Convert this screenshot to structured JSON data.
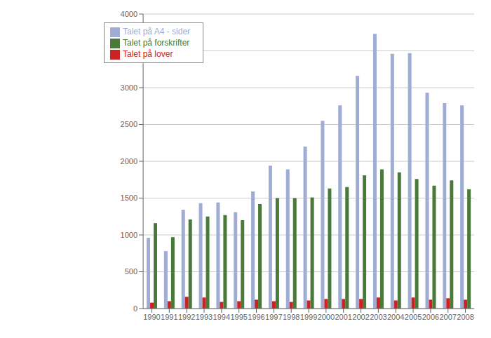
{
  "chart_data": {
    "type": "bar",
    "categories": [
      "1990",
      "1991",
      "1992",
      "1993",
      "1994",
      "1995",
      "1996",
      "1997",
      "1998",
      "1999",
      "2000",
      "2001",
      "2002",
      "2003",
      "2004",
      "2005",
      "2006",
      "2007",
      "2008"
    ],
    "series": [
      {
        "name": "Talet på A4 - sider",
        "color": "#9fadd4",
        "values": [
          960,
          780,
          1340,
          1430,
          1440,
          1310,
          1590,
          1940,
          1890,
          2200,
          2550,
          2760,
          3160,
          3730,
          3460,
          3470,
          2930,
          2790,
          2760
        ]
      },
      {
        "name": "Talet på lover",
        "color": "#cc2222",
        "values": [
          80,
          100,
          160,
          150,
          90,
          100,
          120,
          100,
          90,
          110,
          130,
          130,
          130,
          150,
          110,
          150,
          120,
          140,
          120
        ]
      },
      {
        "name": "Talet på forskrifter",
        "color": "#4a7a3a",
        "values": [
          1160,
          970,
          1210,
          1250,
          1270,
          1200,
          1420,
          1500,
          1500,
          1510,
          1630,
          1650,
          1810,
          1890,
          1850,
          1760,
          1670,
          1740,
          1620
        ]
      }
    ],
    "ylim": [
      0,
      4000
    ],
    "yticks": [
      0,
      500,
      1000,
      1500,
      2000,
      2500,
      3000,
      3500,
      4000
    ],
    "grid": true,
    "legend": "upper left"
  }
}
